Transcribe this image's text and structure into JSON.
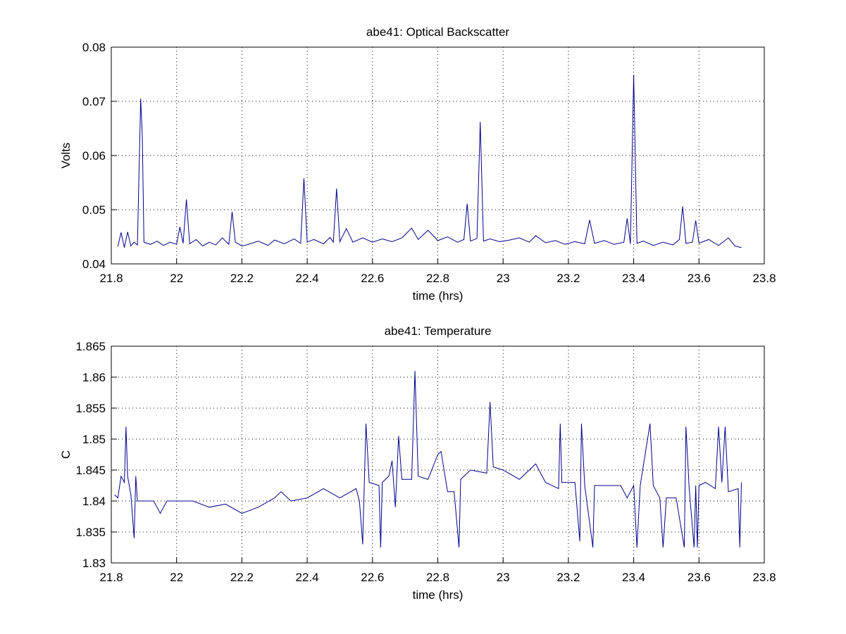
{
  "chart_data": [
    {
      "type": "line",
      "title": "abe41: Optical Backscatter",
      "xlabel": "time (hrs)",
      "ylabel": "Volts",
      "color": "#00008b",
      "grid": true,
      "xlim": [
        21.8,
        23.8
      ],
      "xticks": [
        21.8,
        22,
        22.2,
        22.4,
        22.6,
        22.8,
        23,
        23.2,
        23.4,
        23.6,
        23.8
      ],
      "ylim": [
        0.04,
        0.08
      ],
      "yticks": [
        0.04,
        0.05,
        0.06,
        0.07,
        0.08
      ],
      "x": [
        21.82,
        21.83,
        21.84,
        21.85,
        21.86,
        21.87,
        21.88,
        21.89,
        21.895,
        21.9,
        21.92,
        21.94,
        21.96,
        21.98,
        22,
        22.01,
        22.02,
        22.03,
        22.04,
        22.06,
        22.08,
        22.1,
        22.12,
        22.14,
        22.16,
        22.17,
        22.18,
        22.2,
        22.22,
        22.25,
        22.28,
        22.3,
        22.33,
        22.36,
        22.38,
        22.39,
        22.4,
        22.42,
        22.45,
        22.47,
        22.48,
        22.49,
        22.5,
        22.52,
        22.54,
        22.57,
        22.6,
        22.63,
        22.66,
        22.69,
        22.72,
        22.74,
        22.77,
        22.8,
        22.83,
        22.86,
        22.88,
        22.89,
        22.9,
        22.92,
        22.93,
        22.94,
        22.96,
        22.99,
        23.02,
        23.05,
        23.08,
        23.1,
        23.13,
        23.16,
        23.19,
        23.22,
        23.25,
        23.265,
        23.28,
        23.31,
        23.34,
        23.37,
        23.38,
        23.39,
        23.4,
        23.41,
        23.43,
        23.46,
        23.49,
        23.52,
        23.54,
        23.55,
        23.56,
        23.58,
        23.59,
        23.6,
        23.63,
        23.66,
        23.69,
        23.71,
        23.73
      ],
      "values": [
        0.0432,
        0.0458,
        0.043,
        0.0459,
        0.0433,
        0.044,
        0.0435,
        0.0705,
        0.0635,
        0.044,
        0.0436,
        0.0442,
        0.0434,
        0.044,
        0.0436,
        0.0468,
        0.0438,
        0.0519,
        0.0437,
        0.0445,
        0.0433,
        0.044,
        0.0435,
        0.0448,
        0.0436,
        0.0496,
        0.044,
        0.0433,
        0.0436,
        0.0442,
        0.0434,
        0.0444,
        0.0437,
        0.0446,
        0.0438,
        0.0558,
        0.044,
        0.0445,
        0.0437,
        0.0449,
        0.044,
        0.0539,
        0.0441,
        0.0465,
        0.044,
        0.0448,
        0.044,
        0.0446,
        0.0441,
        0.0448,
        0.0466,
        0.0445,
        0.0462,
        0.0443,
        0.045,
        0.044,
        0.0445,
        0.0511,
        0.0442,
        0.0447,
        0.0662,
        0.0442,
        0.0446,
        0.0441,
        0.0444,
        0.0448,
        0.044,
        0.0452,
        0.0439,
        0.0443,
        0.0436,
        0.0441,
        0.0437,
        0.0481,
        0.0438,
        0.0443,
        0.0436,
        0.044,
        0.0484,
        0.0437,
        0.0749,
        0.0438,
        0.0442,
        0.0434,
        0.044,
        0.0435,
        0.0445,
        0.0506,
        0.0438,
        0.044,
        0.048,
        0.0438,
        0.0445,
        0.0434,
        0.0448,
        0.0433,
        0.043
      ]
    },
    {
      "type": "line",
      "title": "abe41: Temperature",
      "xlabel": "time (hrs)",
      "ylabel": "C",
      "color": "#00008b",
      "grid": true,
      "xlim": [
        21.8,
        23.8
      ],
      "xticks": [
        21.8,
        22,
        22.2,
        22.4,
        22.6,
        22.8,
        23,
        23.2,
        23.4,
        23.6,
        23.8
      ],
      "ylim": [
        1.83,
        1.865
      ],
      "yticks": [
        1.83,
        1.835,
        1.84,
        1.845,
        1.85,
        1.855,
        1.86,
        1.865
      ],
      "x": [
        21.81,
        21.82,
        21.83,
        21.84,
        21.845,
        21.85,
        21.86,
        21.87,
        21.875,
        21.88,
        21.9,
        21.93,
        21.95,
        21.97,
        22,
        22.05,
        22.1,
        22.15,
        22.2,
        22.25,
        22.3,
        22.32,
        22.35,
        22.4,
        22.45,
        22.5,
        22.55,
        22.56,
        22.57,
        22.575,
        22.58,
        22.59,
        22.62,
        22.625,
        22.63,
        22.65,
        22.66,
        22.67,
        22.68,
        22.69,
        22.72,
        22.73,
        22.74,
        22.77,
        22.8,
        22.81,
        22.83,
        22.85,
        22.865,
        22.87,
        22.9,
        22.95,
        22.96,
        22.97,
        23,
        23.05,
        23.1,
        23.13,
        23.17,
        23.175,
        23.18,
        23.22,
        23.235,
        23.24,
        23.25,
        23.275,
        23.28,
        23.32,
        23.36,
        23.38,
        23.4,
        23.41,
        23.42,
        23.45,
        23.46,
        23.48,
        23.49,
        23.5,
        23.53,
        23.555,
        23.56,
        23.57,
        23.585,
        23.59,
        23.595,
        23.6,
        23.62,
        23.65,
        23.66,
        23.67,
        23.68,
        23.69,
        23.72,
        23.725,
        23.73
      ],
      "values": [
        1.841,
        1.8405,
        1.844,
        1.843,
        1.852,
        1.844,
        1.841,
        1.834,
        1.844,
        1.84,
        1.84,
        1.84,
        1.838,
        1.84,
        1.84,
        1.84,
        1.839,
        1.8395,
        1.838,
        1.839,
        1.8405,
        1.8415,
        1.84,
        1.8405,
        1.842,
        1.8405,
        1.842,
        1.84,
        1.833,
        1.843,
        1.8525,
        1.843,
        1.8425,
        1.8325,
        1.843,
        1.844,
        1.8465,
        1.839,
        1.8505,
        1.8435,
        1.8435,
        1.861,
        1.844,
        1.8435,
        1.8475,
        1.848,
        1.8415,
        1.8415,
        1.8325,
        1.8435,
        1.845,
        1.8445,
        1.856,
        1.8455,
        1.845,
        1.8435,
        1.846,
        1.843,
        1.842,
        1.8525,
        1.843,
        1.843,
        1.8335,
        1.8525,
        1.8425,
        1.8325,
        1.8425,
        1.8425,
        1.8425,
        1.8405,
        1.8425,
        1.8325,
        1.8425,
        1.8525,
        1.8425,
        1.8405,
        1.8325,
        1.8405,
        1.8405,
        1.8325,
        1.852,
        1.842,
        1.8325,
        1.8425,
        1.8325,
        1.8425,
        1.843,
        1.842,
        1.852,
        1.843,
        1.852,
        1.8415,
        1.842,
        1.8325,
        1.843
      ]
    }
  ]
}
